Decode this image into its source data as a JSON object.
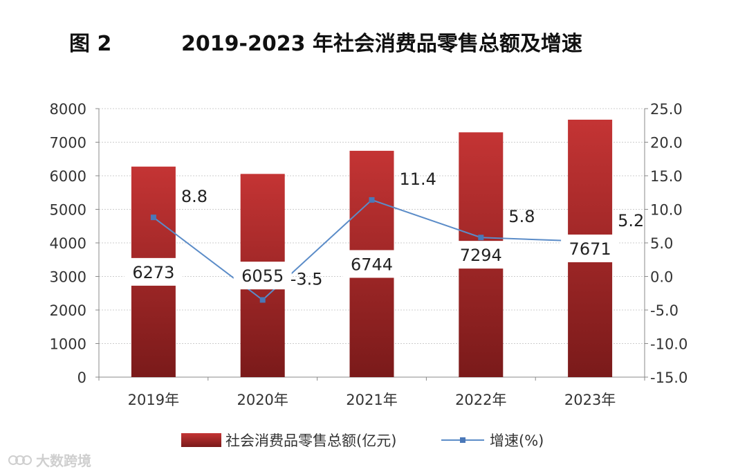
{
  "figure": {
    "number": "图 2",
    "title": "2019-2023 年社会消费品零售总额及增速"
  },
  "chart_data": {
    "type": "bar",
    "categories": [
      "2019年",
      "2020年",
      "2021年",
      "2022年",
      "2023年"
    ],
    "series": [
      {
        "name": "社会消费品零售总额(亿元)",
        "type": "bar",
        "axis": "left",
        "color": "#b02a2a",
        "values": [
          6273,
          6055,
          6744,
          7294,
          7671
        ],
        "labels": [
          "6273",
          "6055",
          "6744",
          "7294",
          "7671"
        ]
      },
      {
        "name": "增速(%)",
        "type": "line",
        "axis": "right",
        "color": "#5b8cc8",
        "marker_color": "#4a78b8",
        "values": [
          8.8,
          -3.5,
          11.4,
          5.8,
          5.2
        ],
        "labels": [
          "8.8",
          "-3.5",
          "11.4",
          "5.8",
          "5.2"
        ]
      }
    ],
    "left_axis": {
      "ylim": [
        0,
        8000
      ],
      "ticks": [
        0,
        1000,
        2000,
        3000,
        4000,
        5000,
        6000,
        7000,
        8000
      ],
      "tick_labels": [
        "0",
        "1000",
        "2000",
        "3000",
        "4000",
        "5000",
        "6000",
        "7000",
        "8000"
      ]
    },
    "right_axis": {
      "ylim": [
        -15,
        25
      ],
      "ticks": [
        -15,
        -10,
        -5,
        0,
        5,
        10,
        15,
        20,
        25
      ],
      "tick_labels": [
        "-15.0",
        "-10.0",
        "-5.0",
        "0.0",
        "5.0",
        "10.0",
        "15.0",
        "20.0",
        "25.0"
      ]
    },
    "grid": true,
    "legend": "bottom"
  },
  "watermark": {
    "text": "大数跨境"
  }
}
